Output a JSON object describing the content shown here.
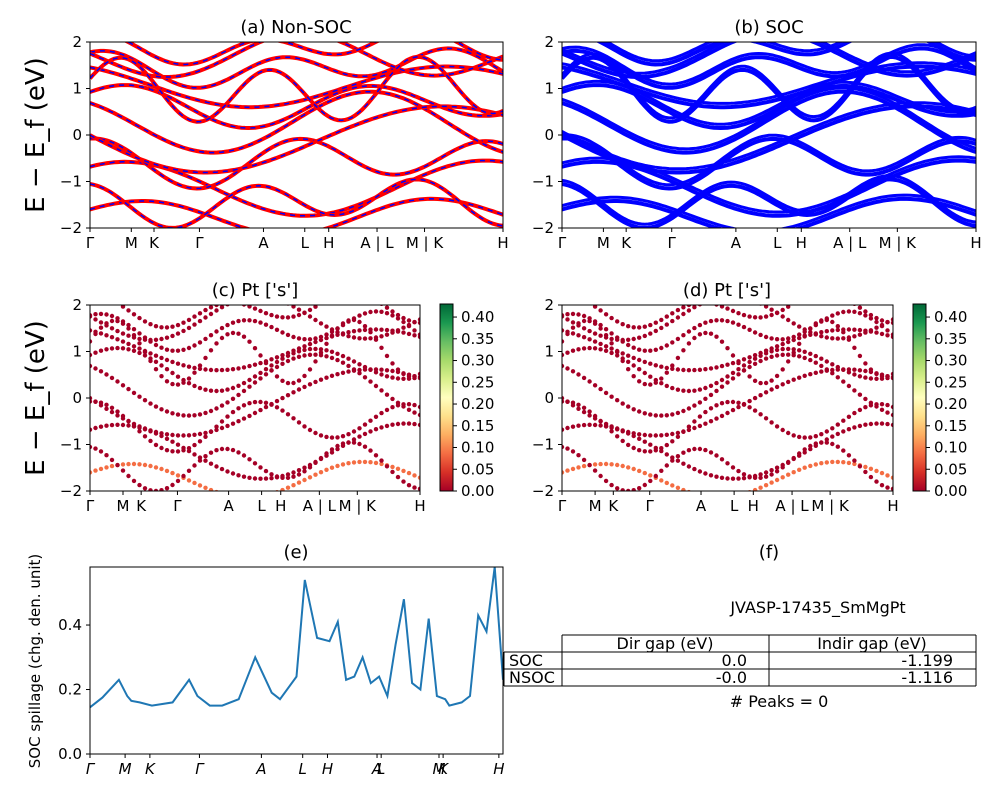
{
  "chart_data": [
    {
      "panel": "a",
      "type": "line",
      "title": "(a) Non-SOC",
      "ylabel": "E − E_f (eV)",
      "ylim": [
        -2,
        2
      ],
      "yticks": [
        "2",
        "1",
        "0",
        "−1",
        "−2"
      ],
      "kpath_labels": [
        "Γ",
        "M",
        "K",
        "Γ",
        "A",
        "L",
        "H",
        "A | L",
        "M | K",
        "H"
      ],
      "colors": {
        "primary": "#ff0000",
        "dashed_overlay": "#0000ff"
      }
    },
    {
      "panel": "b",
      "type": "line",
      "title": "(b) SOC",
      "ylim": [
        -2,
        2
      ],
      "yticks": [
        "2",
        "1",
        "0",
        "−1",
        "−2"
      ],
      "kpath_labels": [
        "Γ",
        "M",
        "K",
        "Γ",
        "A",
        "L",
        "H",
        "A | L",
        "M | K",
        "H"
      ],
      "colors": {
        "primary": "#0000ff"
      }
    },
    {
      "panel": "c",
      "type": "scatter",
      "title": "(c)  Pt ['s']",
      "ylabel": "E − E_f (eV)",
      "ylim": [
        -2,
        2
      ],
      "yticks": [
        "2",
        "1",
        "0",
        "−1",
        "−2"
      ],
      "kpath_labels": [
        "Γ",
        "M",
        "K",
        "Γ",
        "A",
        "L",
        "H",
        "A | L",
        "M | K",
        "H"
      ],
      "colorbar_ticks": [
        "0.40",
        "0.35",
        "0.30",
        "0.25",
        "0.20",
        "0.15",
        "0.10",
        "0.05",
        "0.00"
      ],
      "colorbar_range": [
        0,
        0.43
      ],
      "colormap": "RdYlGn"
    },
    {
      "panel": "d",
      "type": "scatter",
      "title": "(d) Pt ['s']",
      "ylim": [
        -2,
        2
      ],
      "yticks": [
        "2",
        "1",
        "0",
        "−1",
        "−2"
      ],
      "kpath_labels": [
        "Γ",
        "M",
        "K",
        "Γ",
        "A",
        "L",
        "H",
        "A | L",
        "M | K",
        "H"
      ],
      "colorbar_ticks": [
        "0.40",
        "0.35",
        "0.30",
        "0.25",
        "0.20",
        "0.15",
        "0.10",
        "0.05",
        "0.00"
      ],
      "colorbar_range": [
        0,
        0.43
      ],
      "colormap": "RdYlGn"
    },
    {
      "panel": "e",
      "type": "line",
      "title": "(e)",
      "ylabel": "SOC spillage (chg. den. unit)",
      "ylim": [
        0,
        0.58
      ],
      "yticks": [
        "0.4",
        "0.2",
        "0.0"
      ],
      "kpath_labels": [
        "Γ",
        "M",
        "K",
        "Γ",
        "A",
        "L",
        "H",
        "A",
        "L",
        "M",
        "K",
        "H"
      ],
      "color": "#1f77b4",
      "x": [
        0,
        0.03,
        0.07,
        0.09,
        0.1,
        0.12,
        0.15,
        0.2,
        0.24,
        0.26,
        0.29,
        0.32,
        0.36,
        0.4,
        0.44,
        0.46,
        0.5,
        0.52,
        0.55,
        0.58,
        0.6,
        0.62,
        0.64,
        0.66,
        0.68,
        0.7,
        0.72,
        0.74,
        0.76,
        0.78,
        0.8,
        0.82,
        0.84,
        0.86,
        0.87,
        0.9,
        0.92,
        0.94,
        0.96,
        0.98,
        1.0
      ],
      "y": [
        0.145,
        0.175,
        0.23,
        0.18,
        0.165,
        0.16,
        0.15,
        0.16,
        0.23,
        0.18,
        0.15,
        0.15,
        0.17,
        0.3,
        0.19,
        0.17,
        0.24,
        0.54,
        0.36,
        0.35,
        0.41,
        0.23,
        0.24,
        0.3,
        0.22,
        0.24,
        0.18,
        0.34,
        0.48,
        0.22,
        0.2,
        0.42,
        0.18,
        0.17,
        0.15,
        0.16,
        0.18,
        0.43,
        0.38,
        0.58,
        0.23
      ]
    },
    {
      "panel": "f",
      "type": "table",
      "title": "(f)",
      "material": "JVASP-17435_SmMgPt",
      "columns": [
        "Dir gap (eV)",
        "Indir gap (eV)"
      ],
      "rows": [
        {
          "label": "SOC",
          "values": [
            "0.0",
            "-1.199"
          ]
        },
        {
          "label": "NSOC",
          "values": [
            "-0.0",
            "-1.116"
          ]
        }
      ],
      "footer": "# Peaks = 0"
    }
  ]
}
